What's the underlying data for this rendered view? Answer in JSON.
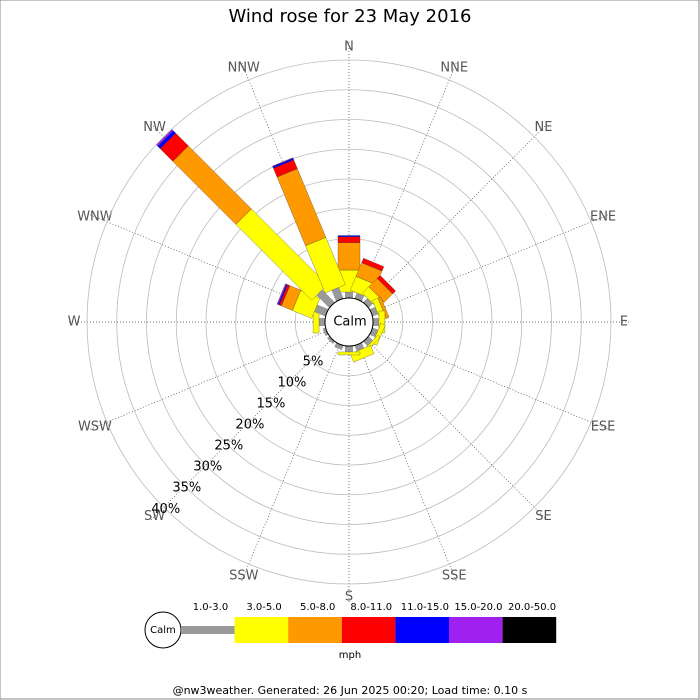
{
  "chart_data": {
    "type": "windrose",
    "title": "Wind rose for 23 May 2016",
    "categories": [
      "N",
      "NNE",
      "NE",
      "ENE",
      "E",
      "ESE",
      "SE",
      "SSE",
      "S",
      "SSW",
      "SW",
      "WSW",
      "W",
      "WNW",
      "NW",
      "NNW"
    ],
    "series": [
      {
        "name": "1.0-3.0",
        "color": "#999999",
        "values": [
          1,
          1,
          1,
          1,
          1,
          1,
          1,
          1,
          1,
          0.8,
          0.5,
          0.5,
          1,
          2,
          3,
          2
        ]
      },
      {
        "name": "3.0-5.0",
        "color": "#ffff00",
        "values": [
          3.7,
          2.5,
          1.5,
          1,
          1,
          0.8,
          0.5,
          1.5,
          0.5,
          0,
          0,
          0,
          1,
          3.5,
          18,
          8.6
        ]
      },
      {
        "name": "5.0-8.0",
        "color": "#ff9900",
        "values": [
          4.6,
          2.5,
          2,
          0.5,
          0,
          0,
          0,
          0,
          0,
          0,
          0,
          0,
          0,
          2,
          15,
          12.5
        ]
      },
      {
        "name": "8.0-11.0",
        "color": "#ff0000",
        "values": [
          1,
          0.8,
          0.7,
          0,
          0,
          0,
          0,
          0,
          0,
          0,
          0,
          0,
          0,
          0.4,
          3,
          1.6
        ]
      },
      {
        "name": "11.0-15.0",
        "color": "#0000ff",
        "values": [
          0.2,
          0,
          0,
          0,
          0,
          0,
          0,
          0,
          0,
          0,
          0,
          0,
          0,
          0.2,
          0.6,
          0.3
        ]
      },
      {
        "name": "15.0-20.0",
        "color": "#a020f0",
        "values": [
          0,
          0,
          0,
          0,
          0,
          0,
          0,
          0,
          0,
          0,
          0,
          0,
          0,
          0.2,
          0.3,
          0.1
        ]
      },
      {
        "name": "20.0-50.0",
        "color": "#000000",
        "values": [
          0,
          0,
          0,
          0,
          0,
          0,
          0,
          0,
          0,
          0,
          0,
          0,
          0,
          0,
          0,
          0
        ]
      }
    ],
    "rlim": [
      0,
      40
    ],
    "rticks": [
      {
        "value": 5,
        "label": "5%"
      },
      {
        "value": 10,
        "label": "10%"
      },
      {
        "value": 15,
        "label": "15%"
      },
      {
        "value": 20,
        "label": "20%"
      },
      {
        "value": 25,
        "label": "25%"
      },
      {
        "value": 30,
        "label": "30%"
      },
      {
        "value": 35,
        "label": "35%"
      },
      {
        "value": 40,
        "label": "40%"
      }
    ],
    "center_label": "Calm",
    "legend_unit": "mph",
    "footer": "@nw3weather. Generated: 26 Jun 2025 00:20; Load time: 0.10 s"
  }
}
